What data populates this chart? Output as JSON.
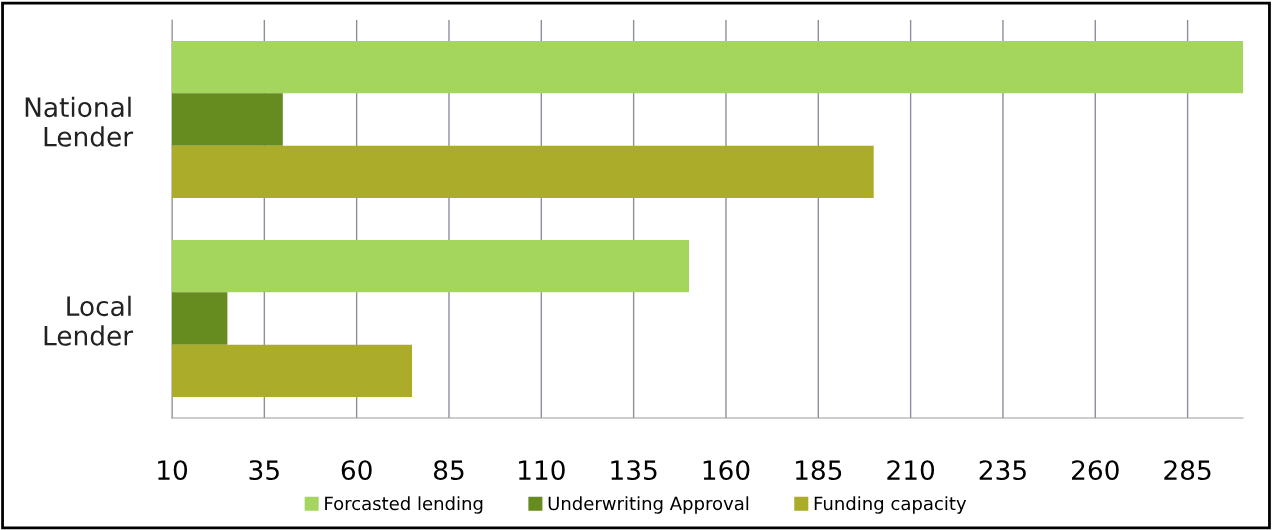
{
  "chart_data": {
    "type": "bar",
    "orientation": "horizontal",
    "categories": [
      "National\nLender",
      "Local\nLender"
    ],
    "series": [
      {
        "name": "Forcasted lending",
        "color": "#a4d65e",
        "values": [
          300,
          150
        ]
      },
      {
        "name": "Underwriting Approval",
        "color": "#668b1f",
        "values": [
          40,
          25
        ]
      },
      {
        "name": "Funding capacity",
        "color": "#abac29",
        "values": [
          200,
          75
        ]
      }
    ],
    "xlim": [
      10,
      300
    ],
    "xticks": [
      10,
      35,
      60,
      85,
      110,
      135,
      160,
      185,
      210,
      235,
      260,
      285
    ],
    "grid": "x",
    "legend": "bottom"
  }
}
